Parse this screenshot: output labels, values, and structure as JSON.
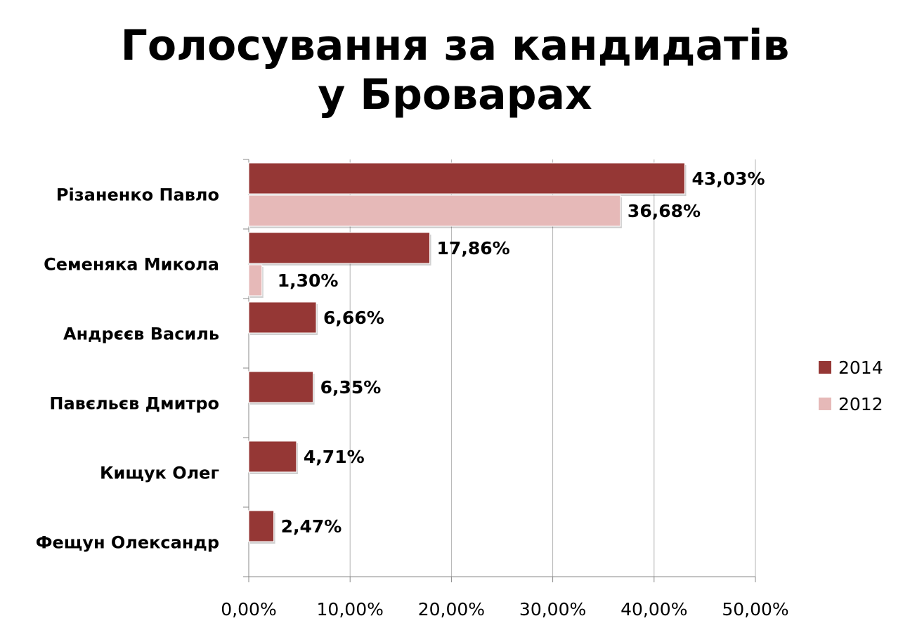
{
  "chart_data": {
    "type": "bar",
    "orientation": "horizontal",
    "title_lines": [
      "Голосування за кандидатів",
      "у Броварах"
    ],
    "categories": [
      "Різаненко Павло",
      "Семеняка Микола",
      "Андрєєв Василь",
      "Павєльєв Дмитро",
      "Кищук Олег",
      "Фещун Олександр"
    ],
    "series": [
      {
        "name": "2014",
        "color": "#953735",
        "values": [
          43.03,
          17.86,
          6.66,
          6.35,
          4.71,
          2.47
        ],
        "labels": [
          "43,03%",
          "17,86%",
          "6,66%",
          "6,35%",
          "4,71%",
          "2,47%"
        ]
      },
      {
        "name": "2012",
        "color": "#e6b9b8",
        "values": [
          36.68,
          1.3,
          null,
          null,
          null,
          null
        ],
        "labels": [
          "36,68%",
          "1,30%",
          null,
          null,
          null,
          null
        ]
      }
    ],
    "xlim": [
      0,
      50
    ],
    "xticks": [
      0,
      10,
      20,
      30,
      40,
      50
    ],
    "xtick_labels": [
      "0,00%",
      "10,00%",
      "20,00%",
      "30,00%",
      "40,00%",
      "50,00%"
    ],
    "grid": "vertical",
    "legend_position": "right"
  }
}
